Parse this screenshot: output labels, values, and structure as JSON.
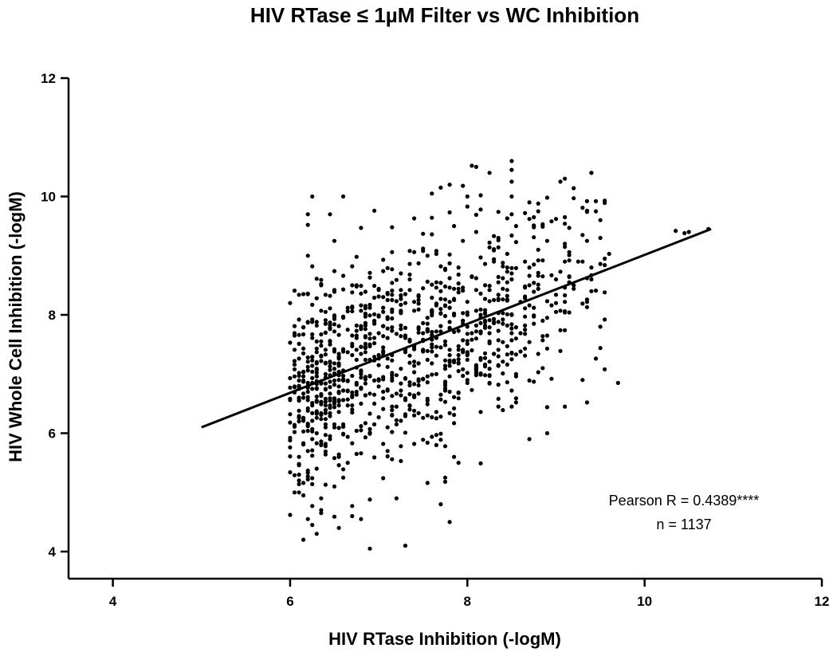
{
  "chart_data": {
    "type": "scatter",
    "title": "HIV RTase ≤ 1µM Filter vs WC Inhibition",
    "xlabel": "HIV RTase Inhibition (-logM)",
    "ylabel": "HIV Whole Cell Inhibition (-logM)",
    "xlim": [
      3.5,
      12
    ],
    "ylim": [
      3.8,
      12
    ],
    "xticks": [
      4,
      6,
      8,
      10,
      12
    ],
    "yticks": [
      4,
      6,
      8,
      10,
      12
    ],
    "grid": false,
    "series": [
      {
        "points": [
          [
            10.35,
            9.42
          ],
          [
            10.45,
            9.38
          ],
          [
            10.72,
            9.45
          ],
          [
            10.5,
            9.4
          ],
          [
            9.7,
            6.85
          ],
          [
            9.3,
            6.9
          ],
          [
            9.1,
            10.3
          ],
          [
            9.05,
            10.25
          ],
          [
            8.9,
            6.0
          ],
          [
            8.7,
            5.9
          ],
          [
            9.5,
            7.8
          ],
          [
            9.5,
            9.3
          ],
          [
            9.4,
            8.8
          ],
          [
            9.4,
            8.6
          ],
          [
            9.4,
            8.4
          ],
          [
            9.2,
            8.5
          ],
          [
            9.0,
            8.2
          ],
          [
            9.0,
            8.6
          ],
          [
            9.1,
            6.45
          ],
          [
            8.5,
            10.6
          ],
          [
            8.5,
            10.45
          ],
          [
            8.5,
            10.25
          ],
          [
            8.5,
            10.0
          ],
          [
            8.5,
            9.7
          ],
          [
            8.1,
            10.5
          ],
          [
            8.05,
            10.52
          ],
          [
            8.0,
            10.0
          ],
          [
            7.8,
            10.2
          ],
          [
            7.7,
            10.15
          ],
          [
            6.25,
            10.0
          ],
          [
            6.6,
            10.0
          ],
          [
            6.2,
            9.7
          ],
          [
            6.45,
            9.7
          ],
          [
            6.3,
            4.3
          ],
          [
            6.25,
            4.45
          ],
          [
            6.2,
            4.55
          ],
          [
            6.55,
            4.4
          ],
          [
            6.9,
            4.05
          ],
          [
            7.3,
            4.1
          ],
          [
            7.2,
            4.9
          ],
          [
            7.8,
            4.5
          ],
          [
            7.7,
            4.8
          ],
          [
            7.9,
            5.5
          ],
          [
            7.85,
            5.6
          ],
          [
            7.75,
            5.25
          ],
          [
            6.05,
            5.0
          ],
          [
            6.1,
            5.3
          ],
          [
            6.15,
            4.95
          ],
          [
            6.35,
            4.7
          ],
          [
            6.7,
            4.6
          ],
          [
            6.8,
            4.55
          ],
          [
            6.5,
            5.1
          ]
        ]
      }
    ],
    "fit_line": {
      "x": [
        5.0,
        10.75
      ],
      "y": [
        6.1,
        9.45
      ]
    },
    "annotations": [
      "Pearson R = 0.4389****",
      "n = 1137"
    ]
  }
}
